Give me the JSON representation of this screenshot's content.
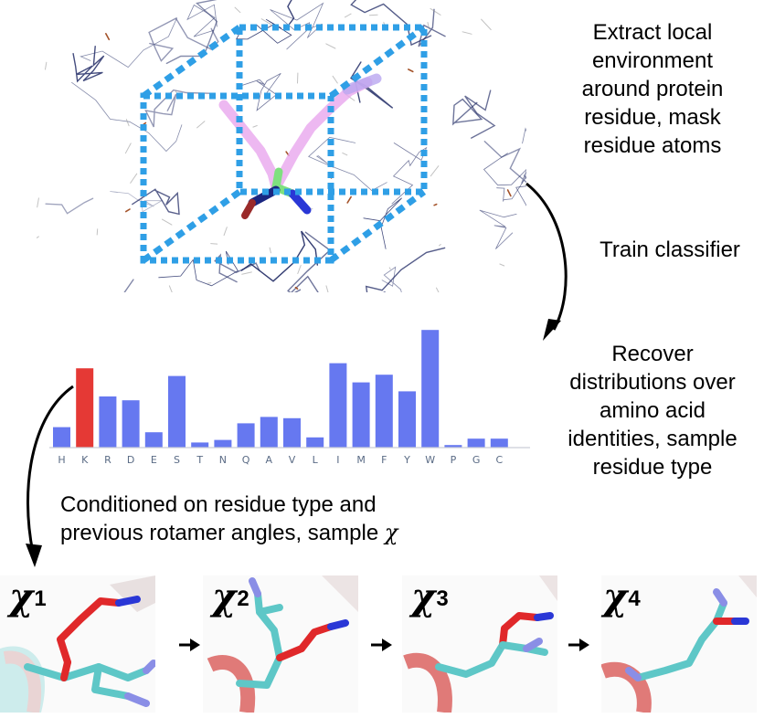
{
  "captions": {
    "extract": [
      "Extract local",
      "environment",
      "around protein",
      "residue, mask",
      "residue atoms"
    ],
    "train": "Train classifier",
    "recover": [
      "Recover",
      "distributions over",
      "amino acid",
      "identities, sample",
      "residue type"
    ],
    "condition_line1": "Conditioned on residue type and",
    "condition_line2": "previous rotamer angles, sample",
    "condition_symbol": "χ"
  },
  "chart_data": {
    "type": "bar",
    "categories": [
      "H",
      "K",
      "R",
      "D",
      "E",
      "S",
      "T",
      "N",
      "Q",
      "A",
      "V",
      "L",
      "I",
      "M",
      "F",
      "Y",
      "W",
      "P",
      "G",
      "C"
    ],
    "values": [
      0.16,
      0.62,
      0.4,
      0.37,
      0.12,
      0.56,
      0.04,
      0.06,
      0.19,
      0.24,
      0.23,
      0.08,
      0.66,
      0.51,
      0.57,
      0.44,
      0.92,
      0.02,
      0.07,
      0.07
    ],
    "highlight_index": 1,
    "bar_color": "#6678f0",
    "highlight_color": "#e53935",
    "ylim": [
      0,
      1
    ]
  },
  "rotamers": [
    {
      "symbol": "χ",
      "index": "1"
    },
    {
      "symbol": "χ",
      "index": "2"
    },
    {
      "symbol": "χ",
      "index": "3"
    },
    {
      "symbol": "χ",
      "index": "4"
    }
  ],
  "colors": {
    "box": "#2f9fe6",
    "carbon": "#5ec7c7",
    "oxygen": "#e0282a",
    "nitrogen": "#2a37d6",
    "mesh": "#1b2561",
    "helix": "#e07a78"
  }
}
